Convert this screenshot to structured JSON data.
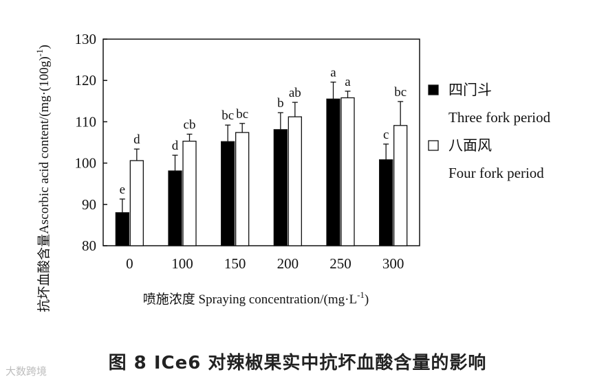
{
  "chart_data": {
    "type": "bar",
    "ylabel_cn": "抗坏血酸含量",
    "ylabel_en": "Ascorbic acid content/(mg·(100g)",
    "ylabel_sup": "-1",
    "ylabel_close": ")",
    "xlabel": "喷施浓度 Spraying concentration/(mg·L",
    "xlabel_sup": "-1",
    "xlabel_close": ")",
    "categories": [
      "0",
      "100",
      "150",
      "200",
      "250",
      "300"
    ],
    "ylim": [
      80,
      130
    ],
    "yticks": [
      80,
      90,
      100,
      110,
      120,
      130
    ],
    "grid": false,
    "legend_position": "right",
    "series": [
      {
        "name_cn": "四门斗",
        "name_en": "Three fork period",
        "fill": "#000000",
        "values": [
          88.0,
          98.1,
          105.2,
          108.1,
          115.5,
          100.8
        ],
        "errors": [
          3.3,
          3.8,
          4.0,
          4.1,
          4.1,
          3.8
        ],
        "labels": [
          "e",
          "d",
          "bc",
          "b",
          "a",
          "c"
        ]
      },
      {
        "name_cn": "八面风",
        "name_en": "Four fork period",
        "fill": "#ffffff",
        "values": [
          100.6,
          105.3,
          107.4,
          111.2,
          115.8,
          109.1
        ],
        "errors": [
          2.8,
          1.7,
          2.2,
          3.5,
          1.6,
          5.8
        ],
        "labels": [
          "d",
          "cb",
          "bc",
          "ab",
          "a",
          "bc"
        ]
      }
    ]
  },
  "caption": "图 8   ICe6 对辣椒果实中抗坏血酸含量的影响",
  "watermark": "大数跨境"
}
